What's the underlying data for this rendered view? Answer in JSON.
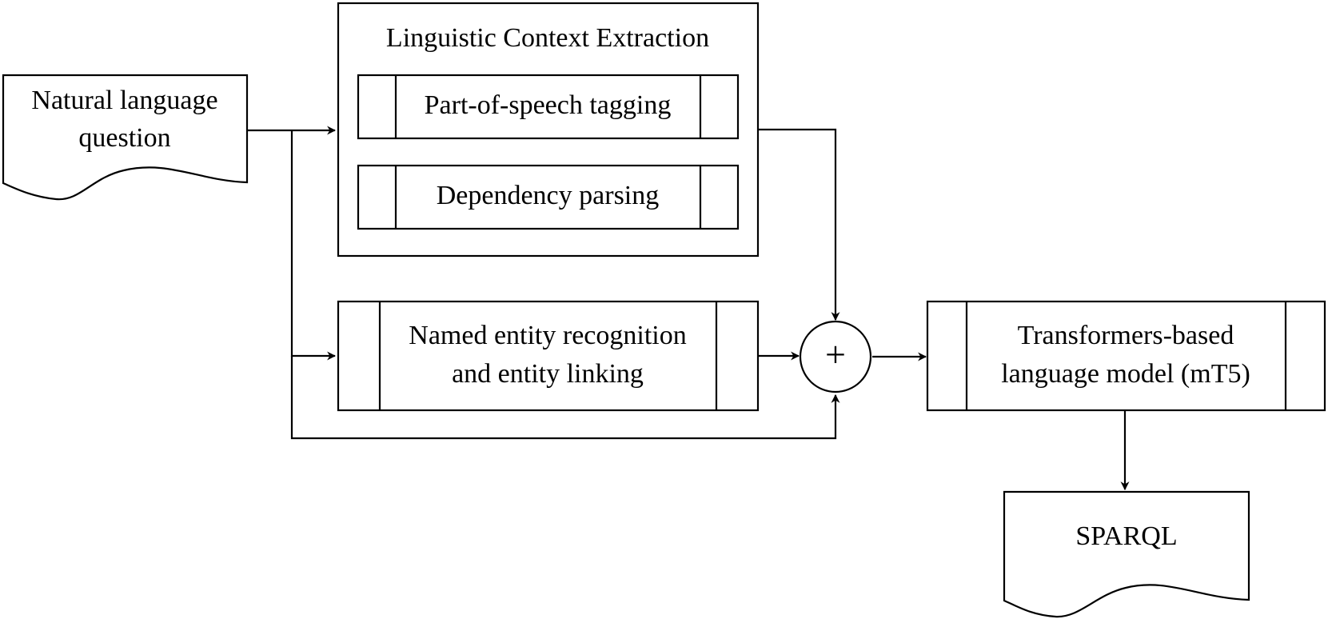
{
  "nodes": {
    "input": {
      "line1": "Natural language",
      "line2": "question"
    },
    "context": {
      "title": "Linguistic Context Extraction",
      "pos": "Part-of-speech tagging",
      "dep": "Dependency parsing"
    },
    "ner": {
      "line1": "Named entity recognition",
      "line2": "and entity linking"
    },
    "combine": {
      "symbol": "+"
    },
    "model": {
      "line1": "Transformers-based",
      "line2": "language model (mT5)"
    },
    "output": {
      "label": "SPARQL"
    }
  },
  "edges": [
    {
      "from": "input",
      "to": "context"
    },
    {
      "from": "input",
      "to": "ner"
    },
    {
      "from": "input",
      "to": "combine"
    },
    {
      "from": "context",
      "to": "combine"
    },
    {
      "from": "ner",
      "to": "combine"
    },
    {
      "from": "combine",
      "to": "model"
    },
    {
      "from": "model",
      "to": "output"
    }
  ]
}
